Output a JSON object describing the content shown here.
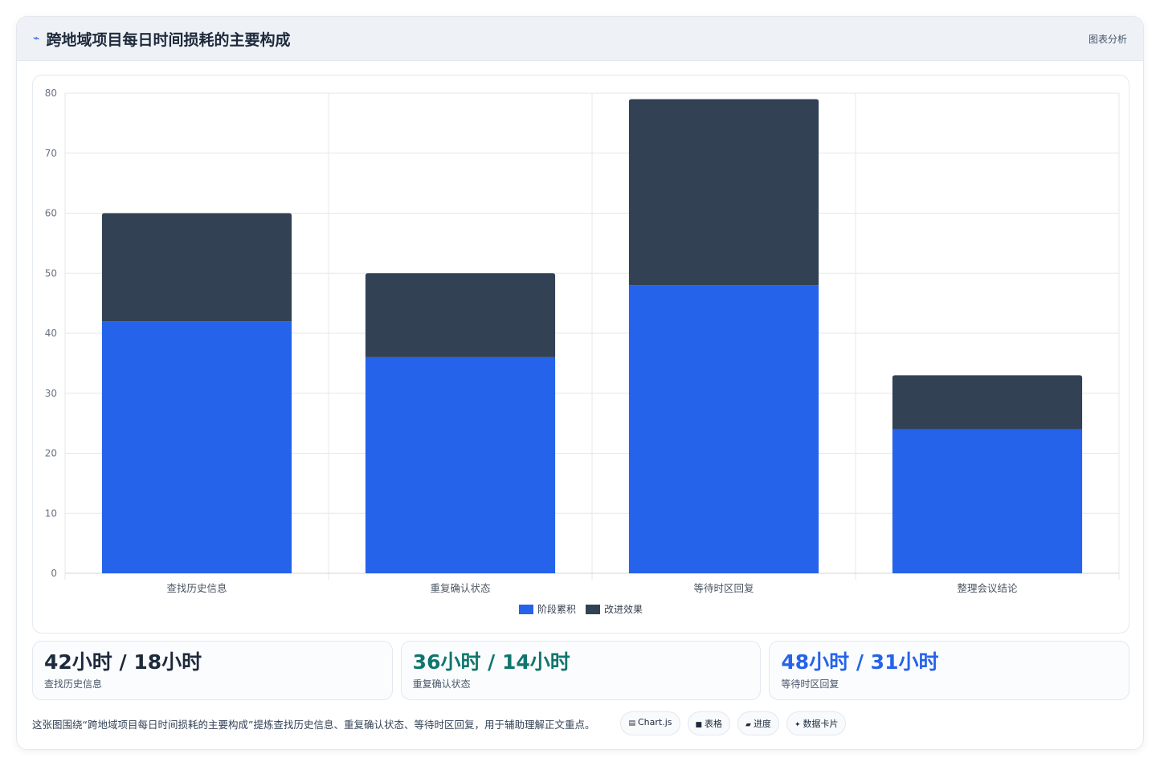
{
  "header": {
    "icon": "chart-line-icon",
    "title": "跨地域项目每日时间损耗的主要构成",
    "tag": "图表分析"
  },
  "chart_data": {
    "type": "bar",
    "stacked": true,
    "categories": [
      "查找历史信息",
      "重复确认状态",
      "等待时区回复",
      "整理会议结论"
    ],
    "series": [
      {
        "name": "阶段累积",
        "values": [
          42,
          36,
          48,
          24
        ],
        "color": "#2563eb"
      },
      {
        "name": "改进效果",
        "values": [
          18,
          14,
          31,
          9
        ],
        "color": "#334155"
      }
    ],
    "ylim": [
      0,
      80
    ],
    "yticks": [
      0,
      10,
      20,
      30,
      40,
      50,
      60,
      70,
      80
    ],
    "grid": true,
    "legend": "bottom"
  },
  "stats": [
    {
      "value": "42小时 / 18小时",
      "label": "查找历史信息",
      "color": "#1e293b"
    },
    {
      "value": "36小时 / 14小时",
      "label": "重复确认状态",
      "color": "#0f766e"
    },
    {
      "value": "48小时 / 31小时",
      "label": "等待时区回复",
      "color": "#2563eb"
    }
  ],
  "footer": {
    "caption": "这张图围绕“跨地域项目每日时间损耗的主要构成”提炼查找历史信息、重复确认状态、等待时区回复，用于辅助理解正文重点。",
    "pills": [
      {
        "icon": "chart-icon",
        "glyph": "▤",
        "label": "Chart.js"
      },
      {
        "icon": "table-icon",
        "glyph": "■",
        "label": "表格"
      },
      {
        "icon": "progress-icon",
        "glyph": "▰",
        "label": "进度"
      },
      {
        "icon": "sparkle-icon",
        "glyph": "✦",
        "label": "数据卡片"
      }
    ]
  }
}
